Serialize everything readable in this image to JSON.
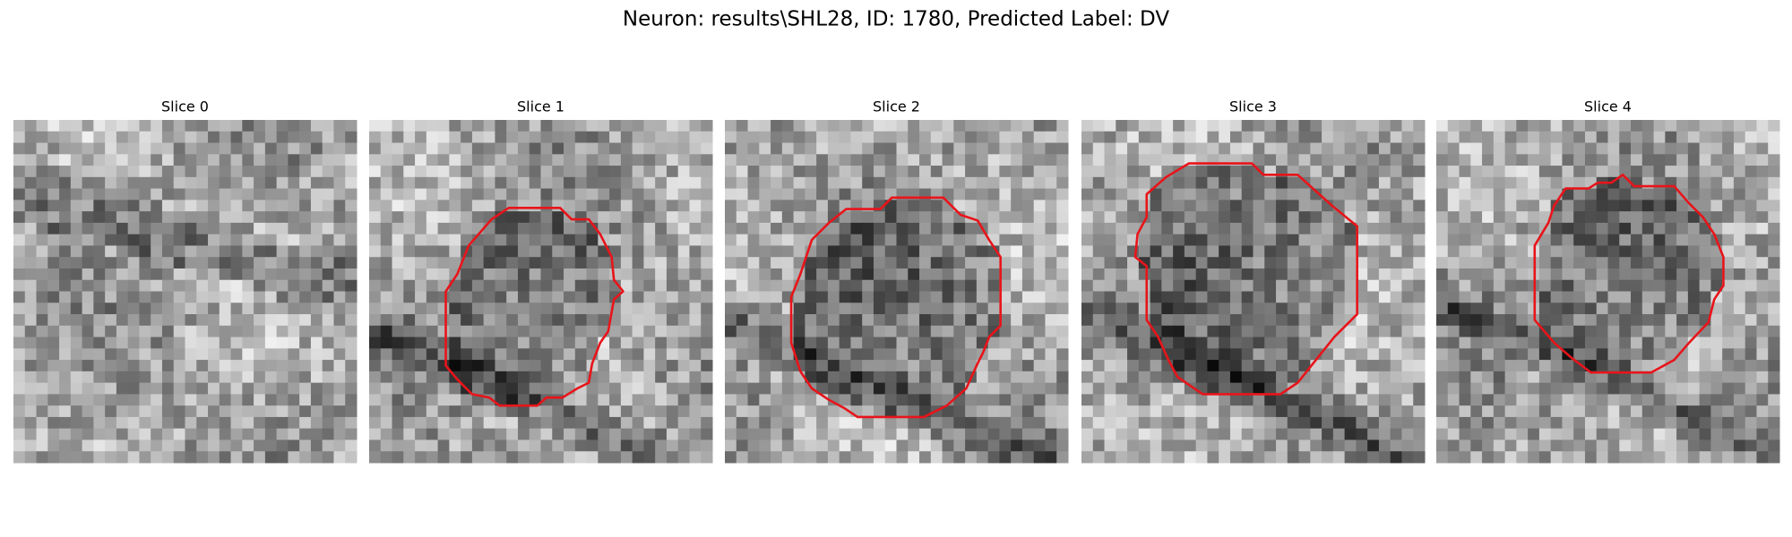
{
  "title": "Neuron: results\\SHL28, ID: 1780, Predicted Label: DV",
  "panels": [
    {
      "title": "Slice 0"
    },
    {
      "title": "Slice 1"
    },
    {
      "title": "Slice 2"
    },
    {
      "title": "Slice 3"
    },
    {
      "title": "Slice 4"
    }
  ]
}
